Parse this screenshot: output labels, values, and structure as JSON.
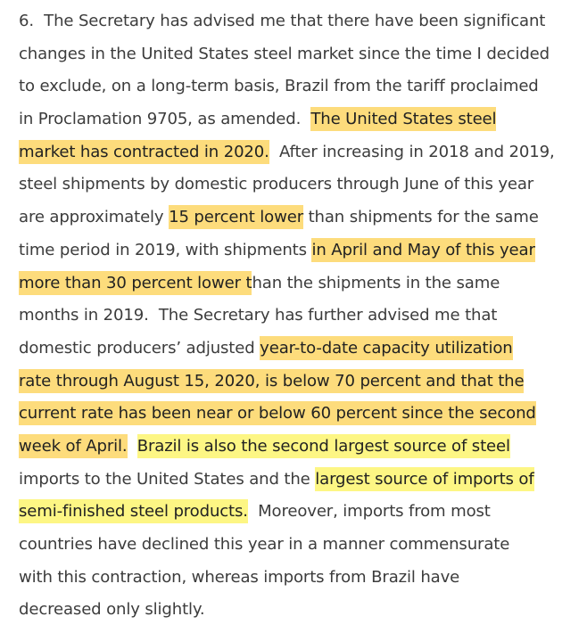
{
  "paragraph": {
    "lines": [
      [
        {
          "t": "6.  The Secretary has advised me that there have been significant",
          "h": ""
        }
      ],
      [
        {
          "t": "changes in the United States steel market since the time I decided",
          "h": ""
        }
      ],
      [
        {
          "t": "to exclude, on a long-term basis, Brazil from the tariff proclaimed",
          "h": ""
        }
      ],
      [
        {
          "t": "in Proclamation 9705, as amended.  ",
          "h": ""
        },
        {
          "t": "The United States steel",
          "h": "orange"
        }
      ],
      [
        {
          "t": "market has contracted in 2020.",
          "h": "orange"
        },
        {
          "t": "  After increasing in 2018 and 2019,",
          "h": ""
        }
      ],
      [
        {
          "t": "steel shipments by domestic producers through June of this year",
          "h": ""
        }
      ],
      [
        {
          "t": "are approximately ",
          "h": ""
        },
        {
          "t": "15 percent lower",
          "h": "orange"
        },
        {
          "t": " than shipments for the same",
          "h": ""
        }
      ],
      [
        {
          "t": "time period in 2019, with shipments ",
          "h": ""
        },
        {
          "t": "in April and May of this year",
          "h": "orange"
        }
      ],
      [
        {
          "t": "more than 30 percent lower t",
          "h": "orange"
        },
        {
          "t": "han the shipments in the same",
          "h": ""
        }
      ],
      [
        {
          "t": "months in 2019.  The Secretary has further advised me that",
          "h": ""
        }
      ],
      [
        {
          "t": "domestic producers’ adjusted ",
          "h": ""
        },
        {
          "t": "year-to-date capacity utilization",
          "h": "orange"
        }
      ],
      [
        {
          "t": "rate through August 15, 2020, is below 70 percent and that the",
          "h": "orange"
        }
      ],
      [
        {
          "t": "current rate has been near or below 60 percent since the second",
          "h": "orange"
        }
      ],
      [
        {
          "t": "week of April.",
          "h": "orange"
        },
        {
          "t": "  ",
          "h": ""
        },
        {
          "t": "Brazil is also the second largest source of steel",
          "h": "yellow"
        }
      ],
      [
        {
          "t": "imports to the United States and the ",
          "h": ""
        },
        {
          "t": "largest source of imports of",
          "h": "yellow"
        }
      ],
      [
        {
          "t": "semi-finished steel products.",
          "h": "yellow"
        },
        {
          "t": "  Moreover, imports from most",
          "h": ""
        }
      ],
      [
        {
          "t": "countries have declined this year in a manner commensurate",
          "h": ""
        }
      ],
      [
        {
          "t": "with this contraction, whereas imports from Brazil have",
          "h": ""
        }
      ],
      [
        {
          "t": "decreased only slightly.",
          "h": ""
        }
      ]
    ]
  },
  "colors": {
    "text": "#3c3c3c",
    "highlight_orange": "#fddc7c",
    "highlight_yellow": "#fdf684",
    "background": "#ffffff"
  }
}
